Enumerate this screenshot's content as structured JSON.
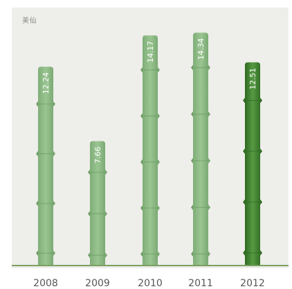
{
  "chart_data": {
    "type": "bar",
    "title": "美仙",
    "categories": [
      "2008",
      "2009",
      "2010",
      "2011",
      "2012"
    ],
    "values": [
      12.24,
      7.66,
      14.17,
      14.34,
      12.51
    ],
    "ylim": [
      0,
      15.5
    ],
    "highlight_index": 4,
    "xlabel": "",
    "ylabel": "",
    "grid": false,
    "legend": "none",
    "colors": {
      "bar": "#8fbc86",
      "bar_dark": "#6e9e66",
      "highlight": "#4f8d3c",
      "highlight_dark": "#336d26",
      "baseline": "#7aa060",
      "panel": "#eeeeea"
    }
  }
}
